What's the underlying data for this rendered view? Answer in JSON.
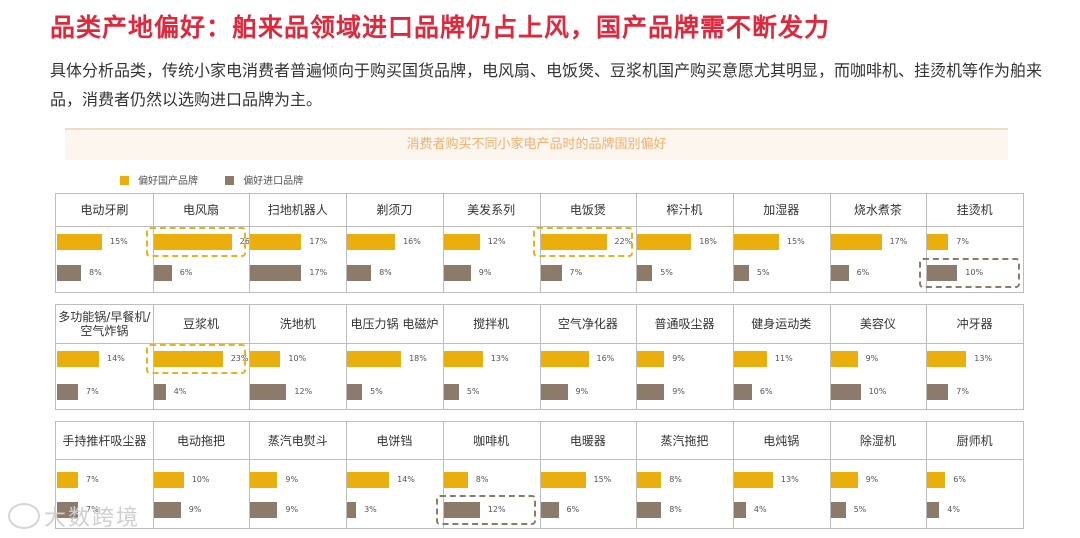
{
  "header": {
    "title": "品类产地偏好：舶来品领域进口品牌仍占上风，国产品牌需不断发力",
    "description": "具体分析品类，传统小家电消费者普遍倾向于购买国货品牌，电风扇、电饭煲、豆浆机国产购买意愿尤其明显，而咖啡机、挂烫机等作为舶来品，消费者仍然以选购进口品牌为主。"
  },
  "watermark": "大数跨境",
  "colors": {
    "domestic": "#eaaf0d",
    "import": "#8c7b6b",
    "title": "#e0283c",
    "highlight_domestic": "#e8b21a",
    "highlight_import": "#8c7b6b"
  },
  "chart_data": {
    "type": "bar",
    "title": "消费者购买不同小家电产品时的品牌国别偏好",
    "legend": [
      "偏好国产品牌",
      "偏好进口品牌"
    ],
    "value_unit": "%",
    "xlim": [
      0,
      30
    ],
    "groups": [
      {
        "categories": [
          "电动牙刷",
          "电风扇",
          "扫地机器人",
          "剃须刀",
          "美发系列",
          "电饭煲",
          "榨汁机",
          "加湿器",
          "烧水煮茶",
          "挂烫机"
        ],
        "series": [
          {
            "name": "偏好国产品牌",
            "values": [
              15,
              26,
              17,
              16,
              12,
              22,
              18,
              15,
              17,
              7
            ]
          },
          {
            "name": "偏好进口品牌",
            "values": [
              8,
              6,
              17,
              8,
              9,
              7,
              5,
              5,
              6,
              10
            ]
          }
        ],
        "highlights": [
          {
            "category": "电风扇",
            "series": "偏好国产品牌"
          },
          {
            "category": "电饭煲",
            "series": "偏好国产品牌"
          },
          {
            "category": "挂烫机",
            "series": "偏好进口品牌"
          }
        ]
      },
      {
        "categories": [
          "多功能锅/早餐机/空气炸锅",
          "豆浆机",
          "洗地机",
          "电压力锅 电磁炉",
          "搅拌机",
          "空气净化器",
          "普通吸尘器",
          "健身运动类",
          "美容仪",
          "冲牙器"
        ],
        "series": [
          {
            "name": "偏好国产品牌",
            "values": [
              14,
              23,
              10,
              18,
              13,
              16,
              9,
              11,
              9,
              13
            ]
          },
          {
            "name": "偏好进口品牌",
            "values": [
              7,
              4,
              12,
              5,
              5,
              9,
              9,
              6,
              10,
              7
            ]
          }
        ],
        "highlights": [
          {
            "category": "豆浆机",
            "series": "偏好国产品牌"
          }
        ]
      },
      {
        "categories": [
          "手持推杆吸尘器",
          "电动拖把",
          "蒸汽电熨斗",
          "电饼铛",
          "咖啡机",
          "电暖器",
          "蒸汽拖把",
          "电炖锅",
          "除湿机",
          "厨师机"
        ],
        "series": [
          {
            "name": "偏好国产品牌",
            "values": [
              7,
              10,
              9,
              14,
              8,
              15,
              8,
              13,
              9,
              6
            ]
          },
          {
            "name": "偏好进口品牌",
            "values": [
              7,
              9,
              9,
              3,
              12,
              6,
              8,
              4,
              5,
              4
            ]
          }
        ],
        "highlights": [
          {
            "category": "咖啡机",
            "series": "偏好进口品牌"
          }
        ]
      }
    ]
  }
}
